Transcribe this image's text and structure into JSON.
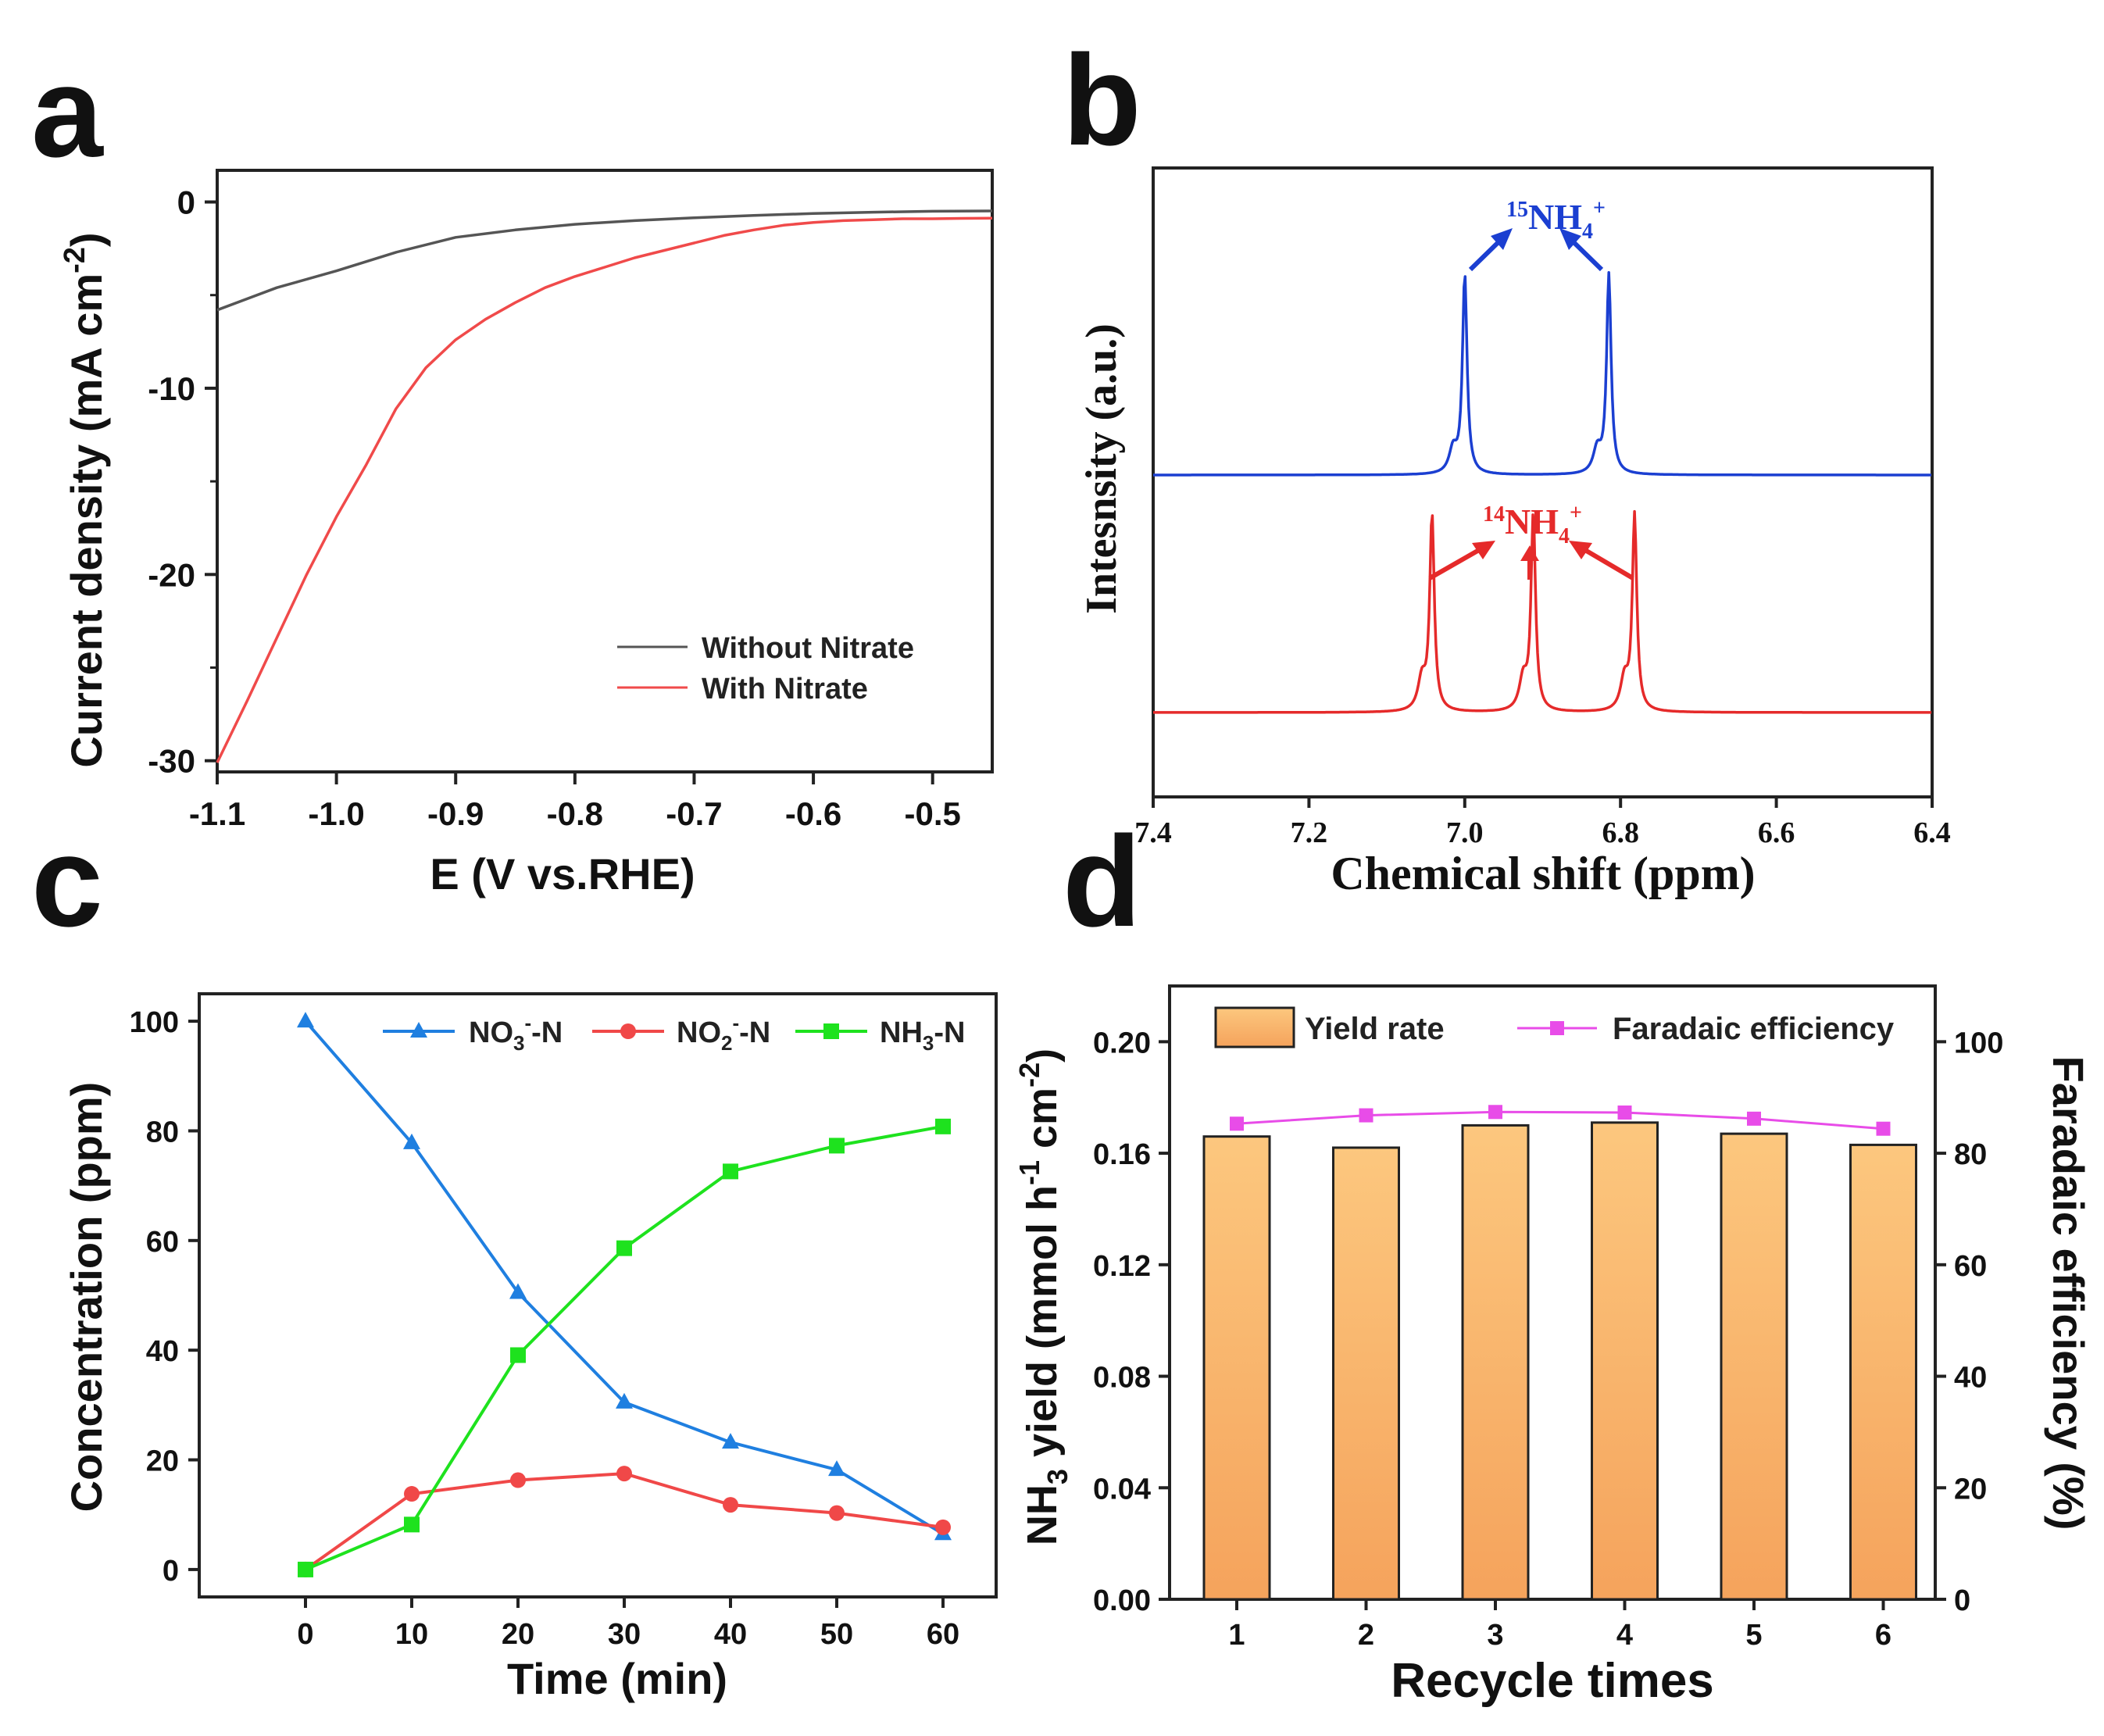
{
  "chart_data": [
    {
      "panel": "a",
      "type": "line",
      "xlabel": "E (V vs.RHE)",
      "ylabel": "Current density (mA cm",
      "ylabel_sup": "-2",
      "ylabel_close": ")",
      "xlim": [
        -1.1,
        -0.45
      ],
      "ylim": [
        -30.6,
        1.7
      ],
      "xticks": [
        -1.1,
        -1.0,
        -0.9,
        -0.8,
        -0.7,
        -0.6,
        -0.5
      ],
      "xtick_labels": [
        "-1.1",
        "-1.0",
        "-0.9",
        "-0.8",
        "-0.7",
        "-0.6",
        "-0.5"
      ],
      "yticks": [
        0,
        -10,
        -20,
        -30
      ],
      "ytick_labels": [
        "0",
        "-10",
        "-20",
        "-30"
      ],
      "legend_position": "bottom-right",
      "series": [
        {
          "name": "Without Nitrate",
          "color": "#555555",
          "x": [
            -1.1,
            -1.05,
            -1.0,
            -0.95,
            -0.9,
            -0.85,
            -0.8,
            -0.75,
            -0.7,
            -0.65,
            -0.6,
            -0.55,
            -0.5,
            -0.45
          ],
          "y": [
            -5.8,
            -4.6,
            -3.7,
            -2.7,
            -1.9,
            -1.5,
            -1.2,
            -1.0,
            -0.85,
            -0.72,
            -0.62,
            -0.55,
            -0.5,
            -0.48
          ]
        },
        {
          "name": "With Nitrate",
          "color": "#f04a4a",
          "x": [
            -1.1,
            -1.075,
            -1.05,
            -1.025,
            -1.0,
            -0.975,
            -0.95,
            -0.925,
            -0.9,
            -0.875,
            -0.85,
            -0.825,
            -0.8,
            -0.775,
            -0.75,
            -0.725,
            -0.7,
            -0.675,
            -0.65,
            -0.625,
            -0.6,
            -0.575,
            -0.55,
            -0.525,
            -0.5,
            -0.475,
            -0.45
          ],
          "y": [
            -30.1,
            -26.8,
            -23.4,
            -20.0,
            -16.9,
            -14.1,
            -11.1,
            -8.9,
            -7.4,
            -6.3,
            -5.4,
            -4.6,
            -4.0,
            -3.5,
            -3.0,
            -2.6,
            -2.2,
            -1.8,
            -1.5,
            -1.25,
            -1.1,
            -1.0,
            -0.95,
            -0.9,
            -0.9,
            -0.88,
            -0.87
          ]
        }
      ]
    },
    {
      "panel": "b",
      "type": "line",
      "xlabel": "Chemical shift (ppm)",
      "ylabel": "Intesnsity (a.u.)",
      "xlim": [
        7.4,
        6.4
      ],
      "xticks": [
        7.4,
        7.2,
        7.0,
        6.8,
        6.6,
        6.4
      ],
      "xtick_labels": [
        "7.4",
        "7.2",
        "7.0",
        "6.8",
        "6.6",
        "6.4"
      ],
      "annotations": [
        {
          "label": "NH",
          "isotope": "15",
          "sub": "4",
          "sup": "+",
          "color": "#1b3fd1"
        },
        {
          "label": "NH",
          "isotope": "14",
          "sub": "4",
          "sup": "+",
          "color": "#e52a2a"
        }
      ],
      "series": [
        {
          "name": "15N",
          "color": "#1b3fd1",
          "baseline": 0.62,
          "peaks": [
            {
              "x": 7.0,
              "h": 1.0
            },
            {
              "x": 7.015,
              "h": 0.12
            },
            {
              "x": 6.815,
              "h": 1.0
            },
            {
              "x": 6.83,
              "h": 0.12
            }
          ]
        },
        {
          "name": "14N",
          "color": "#e52a2a",
          "baseline": 0.0,
          "peaks": [
            {
              "x": 7.042,
              "h": 0.62
            },
            {
              "x": 7.055,
              "h": 0.1
            },
            {
              "x": 6.912,
              "h": 0.62
            },
            {
              "x": 6.925,
              "h": 0.1
            },
            {
              "x": 6.782,
              "h": 0.62
            },
            {
              "x": 6.795,
              "h": 0.1
            }
          ]
        }
      ]
    },
    {
      "panel": "c",
      "type": "line",
      "xlabel": "Time (min)",
      "ylabel": "Concentration (ppm)",
      "xlim": [
        -10,
        65
      ],
      "ylim": [
        -5,
        105
      ],
      "xticks": [
        0,
        10,
        20,
        30,
        40,
        50,
        60
      ],
      "xtick_labels": [
        "0",
        "10",
        "20",
        "30",
        "40",
        "50",
        "60"
      ],
      "yticks": [
        0,
        20,
        40,
        60,
        80,
        100
      ],
      "ytick_labels": [
        "0",
        "20",
        "40",
        "60",
        "80",
        "100"
      ],
      "legend_position": "top-right",
      "x": [
        0,
        10,
        20,
        30,
        40,
        50,
        60
      ],
      "series": [
        {
          "name": "NO",
          "sub": "3",
          "sup": "-",
          "suffix": "-N",
          "color": "#1f7fe0",
          "marker": "triangle",
          "values": [
            100,
            77.8,
            50.5,
            30.5,
            23.2,
            18.2,
            6.5
          ]
        },
        {
          "name": "NO",
          "sub": "2",
          "sup": "-",
          "suffix": "-N",
          "color": "#f04848",
          "marker": "circle",
          "values": [
            0,
            13.8,
            16.3,
            17.5,
            11.8,
            10.3,
            7.7
          ]
        },
        {
          "name": "NH",
          "sub": "3",
          "sup": "",
          "suffix": "-N",
          "color": "#1ee21e",
          "marker": "square",
          "values": [
            0,
            8.2,
            39.1,
            58.6,
            72.6,
            77.3,
            80.8
          ]
        }
      ]
    },
    {
      "panel": "d",
      "type": "bar",
      "xlabel": "Recycle times",
      "ylabel_left_pre": "NH",
      "ylabel_left_sub": "3",
      "ylabel_left_mid": " yield (mmol h",
      "ylabel_left_sup1": "-1",
      "ylabel_left_mid2": " cm",
      "ylabel_left_sup2": "-2",
      "ylabel_left_end": ")",
      "ylabel_right": "Faradaic efficiency (%)",
      "categories": [
        "1",
        "2",
        "3",
        "4",
        "5",
        "6"
      ],
      "ylim_left": [
        0,
        0.22
      ],
      "ylim_right": [
        0,
        110
      ],
      "yticks_left": [
        0.0,
        0.04,
        0.08,
        0.12,
        0.16,
        0.2
      ],
      "ytick_labels_left": [
        "0.00",
        "0.04",
        "0.08",
        "0.12",
        "0.16",
        "0.20"
      ],
      "yticks_right": [
        0,
        20,
        40,
        60,
        80,
        100
      ],
      "ytick_labels_right": [
        "0",
        "20",
        "40",
        "60",
        "80",
        "100"
      ],
      "legend_position": "top",
      "series": [
        {
          "name": "Yield rate",
          "axis": "left",
          "color": "#f5a65a",
          "values": [
            0.166,
            0.162,
            0.17,
            0.171,
            0.167,
            0.163
          ]
        },
        {
          "name": "Faradaic efficiency",
          "axis": "right",
          "color": "#e84ce8",
          "values": [
            85.3,
            86.8,
            87.4,
            87.3,
            86.2,
            84.4
          ]
        }
      ]
    }
  ],
  "panel_labels": [
    "a",
    "b",
    "c",
    "d"
  ]
}
